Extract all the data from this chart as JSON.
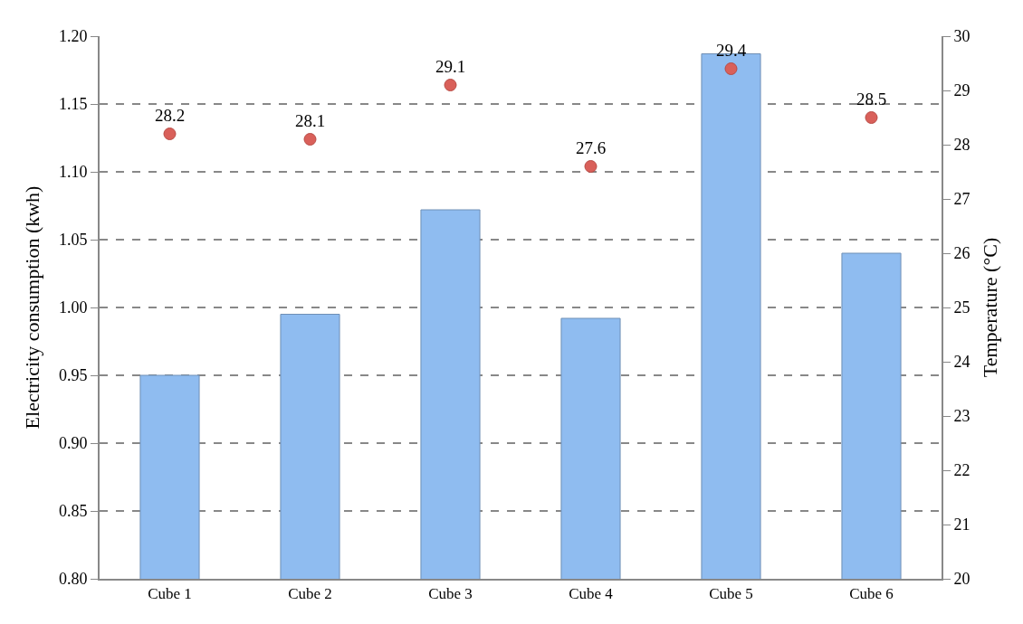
{
  "chart_data": {
    "type": "bar",
    "categories": [
      "Cube 1",
      "Cube 2",
      "Cube 3",
      "Cube 4",
      "Cube 5",
      "Cube 6"
    ],
    "ylabel": "Electricity consumption (kwh)",
    "y2label": "Temperature (°C)",
    "ylim": [
      0.8,
      1.2
    ],
    "yticks": [
      {
        "value": 0.8,
        "label": "0.80"
      },
      {
        "value": 0.85,
        "label": "0.85"
      },
      {
        "value": 0.9,
        "label": "0.90"
      },
      {
        "value": 0.95,
        "label": "0.95"
      },
      {
        "value": 1.0,
        "label": "1.00"
      },
      {
        "value": 1.05,
        "label": "1.05"
      },
      {
        "value": 1.1,
        "label": "1.10"
      },
      {
        "value": 1.15,
        "label": "1.15"
      },
      {
        "value": 1.2,
        "label": "1.20"
      }
    ],
    "y2lim": [
      20,
      30
    ],
    "y2ticks": [
      20,
      21,
      22,
      23,
      24,
      25,
      26,
      27,
      28,
      29,
      30
    ],
    "grid": "y",
    "series": [
      {
        "color": "#8fbcf0",
        "values": [
          0.95,
          0.995,
          1.072,
          0.992,
          1.187,
          1.04
        ]
      },
      {
        "type": "scatter",
        "axis": "y2",
        "color": "#d9605a",
        "marker": "circle",
        "data_labels": true,
        "values": [
          28.2,
          28.1,
          29.1,
          27.6,
          29.4,
          28.5
        ]
      }
    ]
  }
}
